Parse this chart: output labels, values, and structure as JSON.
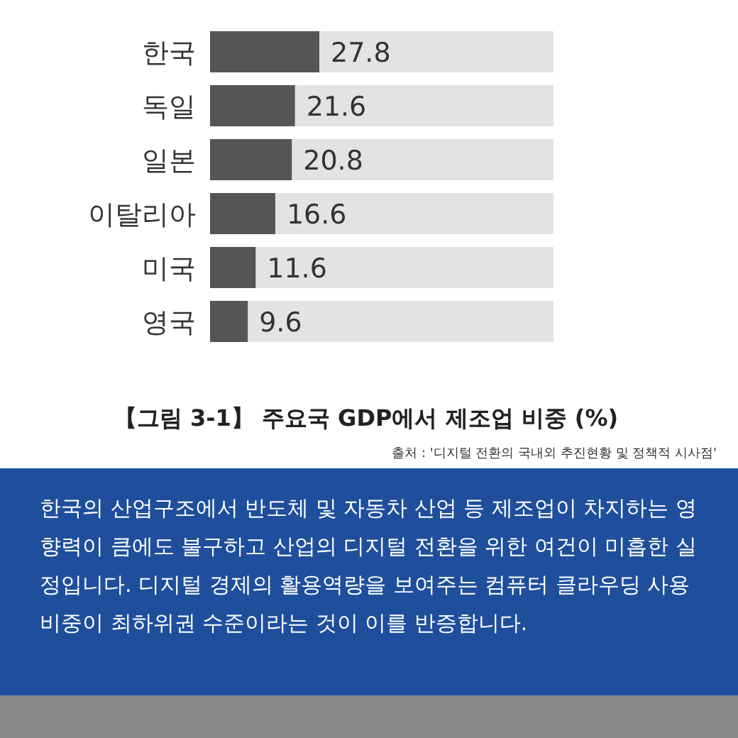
{
  "chart_data": {
    "type": "bar",
    "orientation": "horizontal",
    "title": "【그림 3-1】 주요국 GDP에서 제조업 비중 (%)",
    "categories": [
      "한국",
      "독일",
      "일본",
      "이탈리아",
      "미국",
      "영국"
    ],
    "values": [
      27.8,
      21.6,
      20.8,
      16.6,
      11.6,
      9.6
    ],
    "color": "#555555",
    "data_labels": true,
    "annotations": [
      "출처 : '디지털 전환의 국내외 추진현황 및 정책적 시사점'",
      "한국의 산업구조에서 반도체 및 자동차 산업 등 제조업이 차지하는 영향력이 큼에도 불구하고 산업의 디지털 전환을 위한 여건이 미흡한 실정입니다. 디지털 경제의 활용역량을 보여주는 컴퓨터 클라우딩 사용 비중이 최하위권 수준이라는 것이 이를 반증합니다."
    ]
  }
}
